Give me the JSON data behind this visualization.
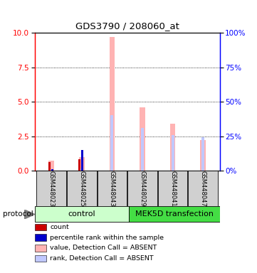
{
  "title": "GDS3790 / 208060_at",
  "samples": [
    "GSM448023",
    "GSM448025",
    "GSM448043",
    "GSM448029",
    "GSM448041",
    "GSM448047"
  ],
  "value_absent": [
    0.7,
    1.0,
    9.7,
    4.6,
    3.4,
    2.2
  ],
  "rank_absent": [
    0.05,
    0.13,
    4.0,
    3.1,
    2.6,
    2.4
  ],
  "count_red": [
    0.6,
    0.8,
    0.0,
    0.0,
    0.0,
    0.0
  ],
  "percentile_blue": [
    0.08,
    1.5,
    0.0,
    0.0,
    0.0,
    0.0
  ],
  "left_ylim": [
    0,
    10
  ],
  "right_ylim": [
    0,
    100
  ],
  "left_yticks": [
    0,
    2.5,
    5.0,
    7.5,
    10
  ],
  "right_yticks": [
    0,
    25,
    50,
    75,
    100
  ],
  "color_value_absent": "#ffb3b3",
  "color_rank_absent": "#c0c8ff",
  "color_count": "#cc0000",
  "color_percentile": "#0000cc",
  "color_control_bg": "#ccffcc",
  "color_mek_bg": "#44dd44",
  "color_sample_bg": "#d0d0d0",
  "group_label_control": "control",
  "group_label_mek": "MEK5D transfection",
  "legend_items": [
    {
      "color": "#cc0000",
      "label": "count"
    },
    {
      "color": "#0000cc",
      "label": "percentile rank within the sample"
    },
    {
      "color": "#ffb3b3",
      "label": "value, Detection Call = ABSENT"
    },
    {
      "color": "#c0c8ff",
      "label": "rank, Detection Call = ABSENT"
    }
  ]
}
